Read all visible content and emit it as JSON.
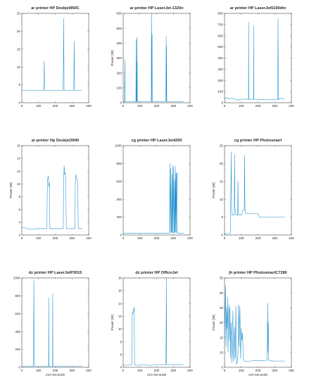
{
  "colors": {
    "trace": "#1f8fce",
    "axis": "#262626"
  },
  "chart_data": [
    {
      "type": "line",
      "title": "ar printer HP Deskjet950C",
      "xlabel": "",
      "ylabel": "",
      "xlim": [
        0,
        400
      ],
      "ylim": [
        0,
        25
      ],
      "xticks": [
        "0",
        "100",
        "200",
        "300",
        "400"
      ],
      "yticks": [
        "0",
        "5",
        "10",
        "15",
        "20",
        "25"
      ],
      "ytick_values": [
        0,
        5,
        10,
        15,
        20,
        25
      ],
      "x": [
        0,
        60,
        120,
        128,
        133,
        134,
        136,
        137,
        140,
        145,
        200,
        240,
        246,
        249,
        250,
        252,
        253,
        256,
        262,
        290,
        305,
        310,
        312,
        313,
        315,
        316,
        320,
        324,
        360
      ],
      "y": [
        3.5,
        3.5,
        3.4,
        3.4,
        6,
        11.7,
        6,
        3.5,
        3.4,
        3.4,
        3.4,
        3.4,
        3.4,
        10,
        23.6,
        10,
        3.5,
        3.4,
        3.4,
        3.4,
        3.4,
        3.5,
        9,
        17.3,
        9,
        3.5,
        3.4,
        3.4,
        3.4
      ]
    },
    {
      "type": "line",
      "title": "ar printer HP LaserJet-1320n",
      "xlabel": "",
      "ylabel": "Power [W]",
      "xlim": [
        0,
        400
      ],
      "ylim": [
        0,
        600
      ],
      "xticks": [
        "0",
        "100",
        "200",
        "300",
        "400"
      ],
      "yticks": [
        "0",
        "100",
        "200",
        "300",
        "400",
        "500",
        "600"
      ],
      "ytick_values": [
        0,
        100,
        200,
        300,
        400,
        500,
        600
      ],
      "x": [
        0,
        8,
        10,
        12,
        14,
        30,
        60,
        76,
        77,
        78,
        80,
        82,
        83,
        84,
        85,
        86,
        88,
        120,
        160,
        168,
        169,
        170,
        171,
        173,
        174,
        177,
        200,
        240,
        255,
        257,
        258,
        259,
        261,
        262,
        265,
        300,
        340,
        360
      ],
      "y": [
        6,
        6,
        290,
        6,
        6,
        6,
        6,
        6,
        425,
        6,
        6,
        440,
        10,
        270,
        6,
        6,
        6,
        6,
        6,
        6,
        600,
        470,
        6,
        460,
        6,
        6,
        6,
        6,
        6,
        450,
        6,
        380,
        10,
        6,
        6,
        6,
        6,
        6
      ]
    },
    {
      "type": "line",
      "title": "ar printer HP LaserJet5100dtn",
      "xlabel": "",
      "ylabel": "",
      "xlim": [
        0,
        400
      ],
      "ylim": [
        0,
        800
      ],
      "xticks": [
        "0",
        "100",
        "200",
        "300",
        "400"
      ],
      "yticks": [
        "0",
        "100",
        "200",
        "300",
        "400",
        "500",
        "600",
        "700",
        "800"
      ],
      "ytick_values": [
        0,
        100,
        200,
        300,
        400,
        500,
        600,
        700,
        800
      ],
      "x": [
        0,
        8,
        15,
        25,
        35,
        45,
        55,
        65,
        75,
        85,
        95,
        105,
        115,
        125,
        135,
        143,
        144,
        145,
        146,
        155,
        165,
        173,
        174,
        175,
        176,
        190,
        210,
        240,
        270,
        300,
        315,
        318,
        320,
        322,
        323,
        324,
        330,
        345,
        360
      ],
      "y": [
        45,
        40,
        48,
        32,
        38,
        42,
        36,
        30,
        28,
        22,
        30,
        32,
        28,
        35,
        30,
        30,
        720,
        40,
        30,
        32,
        30,
        30,
        690,
        40,
        32,
        30,
        28,
        30,
        26,
        28,
        30,
        30,
        750,
        30,
        38,
        30,
        40,
        35,
        38
      ]
    },
    {
      "type": "line",
      "title": "ar printer Hp Deskjet3940",
      "xlabel": "",
      "ylabel": "Power [W]",
      "xlim": [
        0,
        400
      ],
      "ylim": [
        2,
        16
      ],
      "xticks": [
        "0",
        "100",
        "200",
        "300",
        "400"
      ],
      "yticks": [
        "2",
        "4",
        "6",
        "8",
        "10",
        "12",
        "14",
        "16"
      ],
      "ytick_values": [
        2,
        4,
        6,
        8,
        10,
        12,
        14,
        16
      ],
      "x": [
        0,
        20,
        50,
        100,
        140,
        150,
        152,
        155,
        158,
        162,
        165,
        168,
        200,
        240,
        248,
        250,
        253,
        256,
        260,
        263,
        266,
        290,
        310,
        318,
        320,
        323,
        326,
        330,
        334,
        338,
        360
      ],
      "y": [
        3.2,
        3.1,
        2.9,
        3.0,
        3.0,
        3.0,
        8.5,
        10.8,
        11.2,
        9.6,
        10.2,
        3.0,
        3.0,
        3.0,
        3.0,
        10.3,
        12.8,
        11.5,
        11.8,
        10.5,
        3.0,
        3.0,
        3.0,
        3.0,
        10.1,
        11.5,
        11.0,
        10.8,
        10.4,
        3.0,
        3.0
      ]
    },
    {
      "type": "line",
      "title": "cg printer HP LaserJet4200",
      "xlabel": "",
      "ylabel": "",
      "xlim": [
        0,
        400
      ],
      "ylim": [
        0,
        1000
      ],
      "xticks": [
        "0",
        "100",
        "200",
        "300",
        "400"
      ],
      "yticks": [
        "0",
        "200",
        "400",
        "600",
        "800",
        "1000"
      ],
      "ytick_values": [
        0,
        200,
        400,
        600,
        800,
        1000
      ],
      "x": [
        0,
        100,
        200,
        270,
        278,
        280,
        282,
        285,
        288,
        290,
        292,
        294,
        296,
        298,
        300,
        302,
        304,
        306,
        308,
        310,
        312,
        314,
        316,
        318,
        320,
        322,
        324,
        326,
        330,
        340,
        360
      ],
      "y": [
        20,
        20,
        20,
        20,
        20,
        800,
        30,
        750,
        40,
        20,
        680,
        30,
        780,
        20,
        400,
        760,
        30,
        20,
        620,
        40,
        770,
        30,
        690,
        20,
        700,
        680,
        30,
        20,
        20,
        20,
        20
      ]
    },
    {
      "type": "line",
      "title": "cg printer HP Photosmart",
      "xlabel": "",
      "ylabel": "Power [W]",
      "xlim": [
        0,
        400
      ],
      "ylim": [
        0,
        25
      ],
      "xticks": [
        "0",
        "100",
        "200",
        "300",
        "400"
      ],
      "yticks": [
        "0",
        "5",
        "10",
        "15",
        "20",
        "25"
      ],
      "ytick_values": [
        0,
        5,
        10,
        15,
        20,
        25
      ],
      "x": [
        0,
        20,
        35,
        36,
        38,
        40,
        42,
        44,
        46,
        50,
        55,
        58,
        60,
        62,
        66,
        70,
        78,
        80,
        82,
        84,
        88,
        95,
        100,
        110,
        118,
        120,
        122,
        124,
        126,
        130,
        140,
        170,
        200,
        210,
        250,
        300,
        360
      ],
      "y": [
        0.4,
        0.4,
        0.4,
        5.5,
        12,
        23.2,
        8,
        5.6,
        5.6,
        5.6,
        5.6,
        5.6,
        22.5,
        8,
        5.6,
        5.6,
        5.6,
        15.2,
        6,
        5.6,
        5.6,
        5.6,
        5.6,
        7,
        7,
        22.3,
        7.5,
        6.5,
        6,
        6,
        6,
        6,
        6,
        5,
        5,
        5,
        5
      ]
    },
    {
      "type": "line",
      "title": "dz printer HP LaserJetP3015",
      "xlabel": "x10 seconds",
      "ylabel": "",
      "xlim": [
        0,
        400
      ],
      "ylim": [
        0,
        1000
      ],
      "xticks": [
        "0",
        "100",
        "200",
        "300",
        "400"
      ],
      "yticks": [
        "0",
        "200",
        "400",
        "600",
        "800",
        "1000"
      ],
      "ytick_values": [
        0,
        200,
        400,
        600,
        800,
        1000
      ],
      "x": [
        0,
        40,
        68,
        70,
        72,
        74,
        76,
        100,
        150,
        160,
        161,
        162,
        165,
        175,
        184,
        185,
        186,
        190,
        250,
        300,
        360
      ],
      "y": [
        10,
        10,
        10,
        200,
        970,
        30,
        10,
        10,
        10,
        10,
        780,
        20,
        10,
        10,
        10,
        820,
        20,
        10,
        10,
        10,
        10
      ]
    },
    {
      "type": "line",
      "title": "dz printer HP OfficeJet",
      "xlabel": "x10 seconds",
      "ylabel": "Power [W]",
      "xlim": [
        0,
        400
      ],
      "ylim": [
        4,
        18
      ],
      "xticks": [
        "0",
        "100",
        "200",
        "300",
        "400"
      ],
      "yticks": [
        "4",
        "6",
        "8",
        "10",
        "12",
        "14",
        "16",
        "18"
      ],
      "ytick_values": [
        4,
        6,
        8,
        10,
        12,
        14,
        16,
        18
      ],
      "x": [
        0,
        20,
        40,
        52,
        54,
        56,
        58,
        60,
        62,
        64,
        66,
        68,
        70,
        80,
        120,
        160,
        200,
        240,
        256,
        258,
        260,
        262,
        280,
        320,
        360
      ],
      "y": [
        4.4,
        4.3,
        4.4,
        4.4,
        12.2,
        12.6,
        12.4,
        12.9,
        12.8,
        13.2,
        13.4,
        4.4,
        4.4,
        4.3,
        4.4,
        4.3,
        4.4,
        4.4,
        4.4,
        17.9,
        4.5,
        4.4,
        4.4,
        4.4,
        4.4
      ]
    },
    {
      "type": "line",
      "title": "jh printer HP PhotosmartC7280",
      "xlabel": "x10 seconds",
      "ylabel": "Power [W]",
      "xlim": [
        0,
        400
      ],
      "ylim": [
        5,
        35
      ],
      "xticks": [
        "0",
        "100",
        "200",
        "300",
        "400"
      ],
      "yticks": [
        "5",
        "10",
        "15",
        "20",
        "25",
        "30",
        "35"
      ],
      "ytick_values": [
        5,
        10,
        15,
        20,
        25,
        30,
        35
      ],
      "x": [
        0,
        3,
        6,
        9,
        12,
        15,
        18,
        21,
        24,
        27,
        30,
        33,
        36,
        40,
        45,
        50,
        53,
        56,
        60,
        64,
        68,
        72,
        76,
        80,
        84,
        88,
        92,
        96,
        100,
        104,
        108,
        112,
        120,
        140,
        180,
        220,
        255,
        258,
        260,
        262,
        264,
        268,
        300,
        360
      ],
      "y": [
        14,
        22,
        32.5,
        12,
        25,
        18,
        28.5,
        10,
        22,
        26,
        14,
        25,
        8,
        20,
        6.5,
        24,
        10,
        7,
        18.5,
        8,
        25.5,
        6,
        7,
        9,
        26,
        12,
        25.5,
        8,
        18,
        14,
        16.5,
        8,
        7,
        7,
        7.3,
        7.2,
        7.4,
        26.5,
        10,
        20,
        7.6,
        7.2,
        7.1,
        7.1
      ]
    }
  ]
}
